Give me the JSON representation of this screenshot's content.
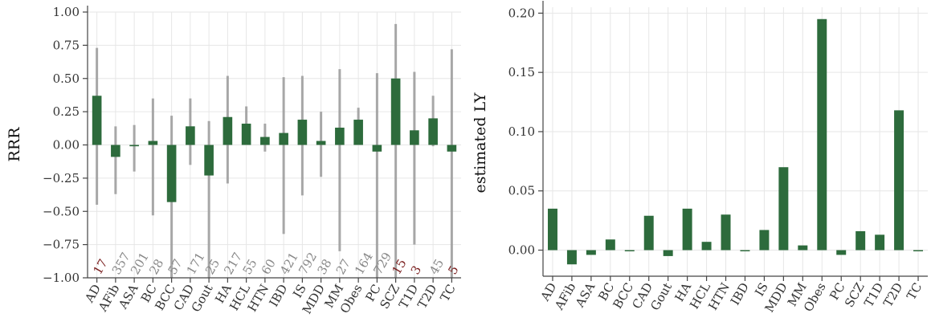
{
  "colors": {
    "bar": "#2d6b3c",
    "errorbar": "#9e9e9e",
    "count_normal": "#888888",
    "count_low": "#7a1f1f",
    "grid": "#e6e6e6"
  },
  "chart_data": [
    {
      "type": "bar",
      "ylabel": "RRR",
      "ylim": [
        -1.0,
        1.0
      ],
      "yticks": [
        -1.0,
        -0.75,
        -0.5,
        -0.25,
        0.0,
        0.25,
        0.5,
        0.75,
        1.0
      ],
      "ytick_labels": [
        "−1.00",
        "−0.75",
        "−0.50",
        "−0.25",
        "0.00",
        "0.25",
        "0.50",
        "0.75",
        "1.00"
      ],
      "grid": true,
      "categories": [
        "AD",
        "AFib",
        "ASA",
        "BC",
        "BCC",
        "CAD",
        "Gout",
        "HA",
        "HCL",
        "HTN",
        "IBD",
        "IS",
        "MDD",
        "MM",
        "Obes",
        "PC",
        "SCZ",
        "T1D",
        "T2D",
        "TC"
      ],
      "values": [
        0.37,
        -0.09,
        -0.01,
        0.03,
        -0.43,
        0.14,
        -0.23,
        0.21,
        0.16,
        0.06,
        0.09,
        0.19,
        0.03,
        0.13,
        0.19,
        -0.05,
        0.5,
        0.11,
        0.2,
        -0.05
      ],
      "error_low": [
        -0.45,
        -0.37,
        -0.2,
        -0.53,
        -1.0,
        -0.15,
        -1.0,
        -0.29,
        0.01,
        -0.05,
        -0.67,
        -0.38,
        -0.24,
        -0.8,
        0.05,
        -1.0,
        -1.0,
        -0.75,
        -0.01,
        -1.0
      ],
      "error_high": [
        0.73,
        0.14,
        0.15,
        0.35,
        0.22,
        0.35,
        0.18,
        0.52,
        0.29,
        0.16,
        0.51,
        0.52,
        0.25,
        0.57,
        0.28,
        0.54,
        0.91,
        0.55,
        0.37,
        0.72
      ],
      "counts": [
        "17",
        "357",
        "201",
        "28",
        "57",
        "171",
        "25",
        "217",
        "55",
        "60",
        "421",
        "792",
        "38",
        "27",
        "164",
        "729",
        "15",
        "3",
        "45",
        "5"
      ],
      "count_low_flag": [
        true,
        false,
        false,
        false,
        false,
        false,
        false,
        false,
        false,
        false,
        false,
        false,
        false,
        false,
        false,
        false,
        true,
        true,
        false,
        true
      ]
    },
    {
      "type": "bar",
      "ylabel": "estimated LY",
      "ylim": [
        -0.022,
        0.205
      ],
      "yticks": [
        0.0,
        0.05,
        0.1,
        0.15,
        0.2
      ],
      "ytick_labels": [
        "0.00",
        "0.05",
        "0.10",
        "0.15",
        "0.20"
      ],
      "grid": true,
      "categories": [
        "AD",
        "AFib",
        "ASA",
        "BC",
        "BCC",
        "CAD",
        "Gout",
        "HA",
        "HCL",
        "HTN",
        "IBD",
        "IS",
        "MDD",
        "MM",
        "Obes",
        "PC",
        "SCZ",
        "T1D",
        "T2D",
        "TC"
      ],
      "values": [
        0.035,
        -0.012,
        -0.004,
        0.009,
        -0.001,
        0.029,
        -0.005,
        0.035,
        0.007,
        0.03,
        -0.001,
        0.017,
        0.07,
        0.004,
        0.195,
        -0.004,
        0.016,
        0.013,
        0.118,
        -0.001
      ]
    }
  ]
}
